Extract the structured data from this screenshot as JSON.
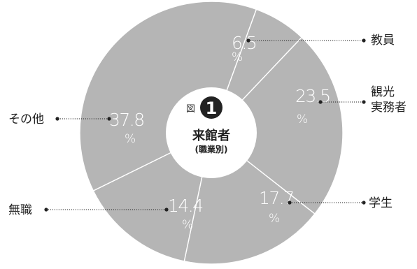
{
  "chart_data": {
    "type": "pie",
    "title": "来館者",
    "subtitle": "(職業別)",
    "figure_prefix": "図",
    "figure_number": "1",
    "unit": "%",
    "slices": [
      {
        "label": "教員",
        "value": 6.5,
        "value_text": "6.5"
      },
      {
        "label": "観光実務者",
        "label_lines": [
          "観光",
          "実務者"
        ],
        "value": 23.5,
        "value_text": "23.5"
      },
      {
        "label": "学生",
        "value": 17.7,
        "value_text": "17.7"
      },
      {
        "label": "無職",
        "value": 14.4,
        "value_text": "14.4"
      },
      {
        "label": "その他",
        "value": 37.8,
        "value_text": "37.8"
      }
    ],
    "colors": {
      "slice": "#b5b5b5",
      "hole": "#ffffff",
      "badge": "#222222",
      "text": "#222222"
    }
  }
}
